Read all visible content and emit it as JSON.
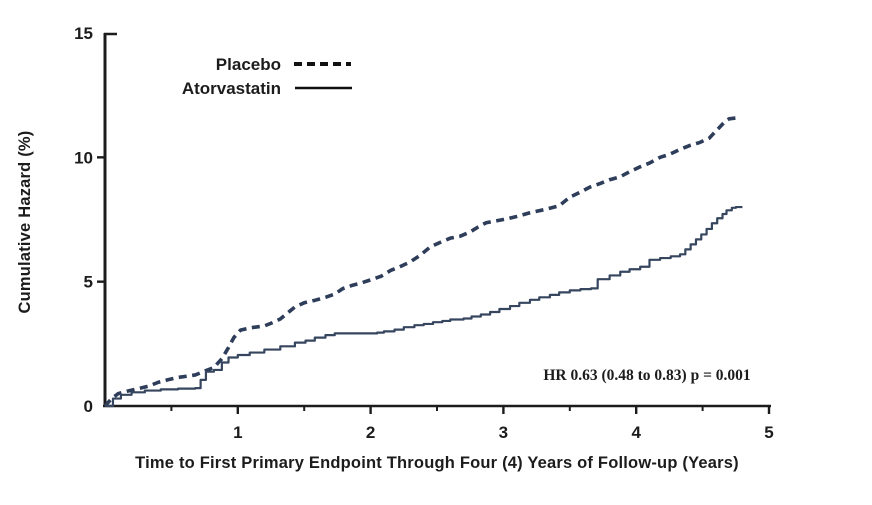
{
  "chart_data": {
    "type": "line",
    "title": "",
    "xlabel": "Time to First Primary Endpoint Through Four (4) Years of Follow-up (Years)",
    "ylabel": "Cumulative Hazard (%)",
    "annotation": "HR 0.63 (0.48 to 0.83) p = 0.001",
    "grid": false,
    "legend_position": "top-left-inside",
    "x_axis": {
      "min": 0,
      "max": 5,
      "major_ticks": [
        1,
        2,
        3,
        4,
        5
      ],
      "minor_ticks": [
        0.5,
        1.5,
        2.5,
        3.5,
        4.5
      ]
    },
    "y_axis": {
      "min": 0,
      "max": 15,
      "ticks": [
        0,
        5,
        10,
        15
      ]
    },
    "colors": {
      "curve_navy": "#2e3d59",
      "axis_black": "#1c1c1c",
      "legend_sample_black": "#111111"
    },
    "series": [
      {
        "name": "Placebo",
        "style": "dashed",
        "color": "#2e3d59",
        "interpolation": "linear",
        "points": [
          [
            0,
            0
          ],
          [
            0.05,
            0.3
          ],
          [
            0.1,
            0.5
          ],
          [
            0.17,
            0.6
          ],
          [
            0.25,
            0.7
          ],
          [
            0.33,
            0.8
          ],
          [
            0.4,
            0.95
          ],
          [
            0.47,
            1.05
          ],
          [
            0.55,
            1.15
          ],
          [
            0.62,
            1.2
          ],
          [
            0.68,
            1.25
          ],
          [
            0.75,
            1.4
          ],
          [
            0.82,
            1.55
          ],
          [
            0.88,
            1.9
          ],
          [
            0.93,
            2.35
          ],
          [
            0.97,
            2.75
          ],
          [
            1.02,
            3.05
          ],
          [
            1.1,
            3.15
          ],
          [
            1.2,
            3.22
          ],
          [
            1.27,
            3.37
          ],
          [
            1.32,
            3.5
          ],
          [
            1.37,
            3.72
          ],
          [
            1.43,
            3.98
          ],
          [
            1.5,
            4.15
          ],
          [
            1.58,
            4.25
          ],
          [
            1.66,
            4.37
          ],
          [
            1.73,
            4.5
          ],
          [
            1.79,
            4.72
          ],
          [
            1.86,
            4.85
          ],
          [
            1.93,
            4.95
          ],
          [
            2.0,
            5.07
          ],
          [
            2.08,
            5.22
          ],
          [
            2.15,
            5.45
          ],
          [
            2.22,
            5.6
          ],
          [
            2.3,
            5.8
          ],
          [
            2.37,
            6.05
          ],
          [
            2.45,
            6.4
          ],
          [
            2.52,
            6.57
          ],
          [
            2.6,
            6.75
          ],
          [
            2.67,
            6.82
          ],
          [
            2.75,
            7.0
          ],
          [
            2.81,
            7.2
          ],
          [
            2.87,
            7.37
          ],
          [
            2.95,
            7.45
          ],
          [
            3.02,
            7.52
          ],
          [
            3.1,
            7.62
          ],
          [
            3.2,
            7.77
          ],
          [
            3.31,
            7.9
          ],
          [
            3.42,
            8.05
          ],
          [
            3.5,
            8.4
          ],
          [
            3.58,
            8.6
          ],
          [
            3.65,
            8.8
          ],
          [
            3.73,
            8.95
          ],
          [
            3.8,
            9.1
          ],
          [
            3.88,
            9.22
          ],
          [
            3.95,
            9.42
          ],
          [
            4.03,
            9.62
          ],
          [
            4.1,
            9.77
          ],
          [
            4.18,
            10.0
          ],
          [
            4.25,
            10.12
          ],
          [
            4.33,
            10.32
          ],
          [
            4.4,
            10.47
          ],
          [
            4.48,
            10.6
          ],
          [
            4.55,
            10.77
          ],
          [
            4.59,
            11.0
          ],
          [
            4.63,
            11.22
          ],
          [
            4.67,
            11.45
          ],
          [
            4.7,
            11.55
          ],
          [
            4.78,
            11.6
          ]
        ]
      },
      {
        "name": "Atorvastatin",
        "style": "solid",
        "color": "#36465f",
        "interpolation": "step-after",
        "points": [
          [
            0,
            0
          ],
          [
            0.06,
            0.3
          ],
          [
            0.12,
            0.45
          ],
          [
            0.2,
            0.55
          ],
          [
            0.3,
            0.62
          ],
          [
            0.42,
            0.67
          ],
          [
            0.55,
            0.7
          ],
          [
            0.68,
            0.72
          ],
          [
            0.72,
            1.05
          ],
          [
            0.76,
            1.38
          ],
          [
            0.82,
            1.45
          ],
          [
            0.88,
            1.75
          ],
          [
            0.93,
            1.95
          ],
          [
            1.0,
            2.05
          ],
          [
            1.09,
            2.15
          ],
          [
            1.2,
            2.27
          ],
          [
            1.32,
            2.4
          ],
          [
            1.43,
            2.55
          ],
          [
            1.51,
            2.63
          ],
          [
            1.58,
            2.75
          ],
          [
            1.66,
            2.85
          ],
          [
            1.73,
            2.92
          ],
          [
            2.05,
            2.95
          ],
          [
            2.1,
            3.0
          ],
          [
            2.18,
            3.07
          ],
          [
            2.25,
            3.17
          ],
          [
            2.33,
            3.25
          ],
          [
            2.4,
            3.3
          ],
          [
            2.47,
            3.37
          ],
          [
            2.54,
            3.42
          ],
          [
            2.6,
            3.48
          ],
          [
            2.7,
            3.52
          ],
          [
            2.76,
            3.6
          ],
          [
            2.83,
            3.68
          ],
          [
            2.9,
            3.78
          ],
          [
            2.97,
            3.9
          ],
          [
            3.05,
            4.02
          ],
          [
            3.12,
            4.15
          ],
          [
            3.2,
            4.27
          ],
          [
            3.27,
            4.37
          ],
          [
            3.35,
            4.47
          ],
          [
            3.42,
            4.57
          ],
          [
            3.5,
            4.65
          ],
          [
            3.58,
            4.7
          ],
          [
            3.66,
            4.73
          ],
          [
            3.71,
            5.1
          ],
          [
            3.8,
            5.25
          ],
          [
            3.88,
            5.4
          ],
          [
            3.95,
            5.5
          ],
          [
            4.03,
            5.6
          ],
          [
            4.1,
            5.88
          ],
          [
            4.18,
            5.95
          ],
          [
            4.26,
            6.02
          ],
          [
            4.33,
            6.1
          ],
          [
            4.37,
            6.3
          ],
          [
            4.41,
            6.5
          ],
          [
            4.45,
            6.7
          ],
          [
            4.49,
            6.9
          ],
          [
            4.53,
            7.12
          ],
          [
            4.57,
            7.35
          ],
          [
            4.61,
            7.55
          ],
          [
            4.65,
            7.72
          ],
          [
            4.68,
            7.87
          ],
          [
            4.72,
            7.97
          ],
          [
            4.75,
            8.0
          ],
          [
            4.8,
            8.0
          ]
        ]
      }
    ]
  }
}
